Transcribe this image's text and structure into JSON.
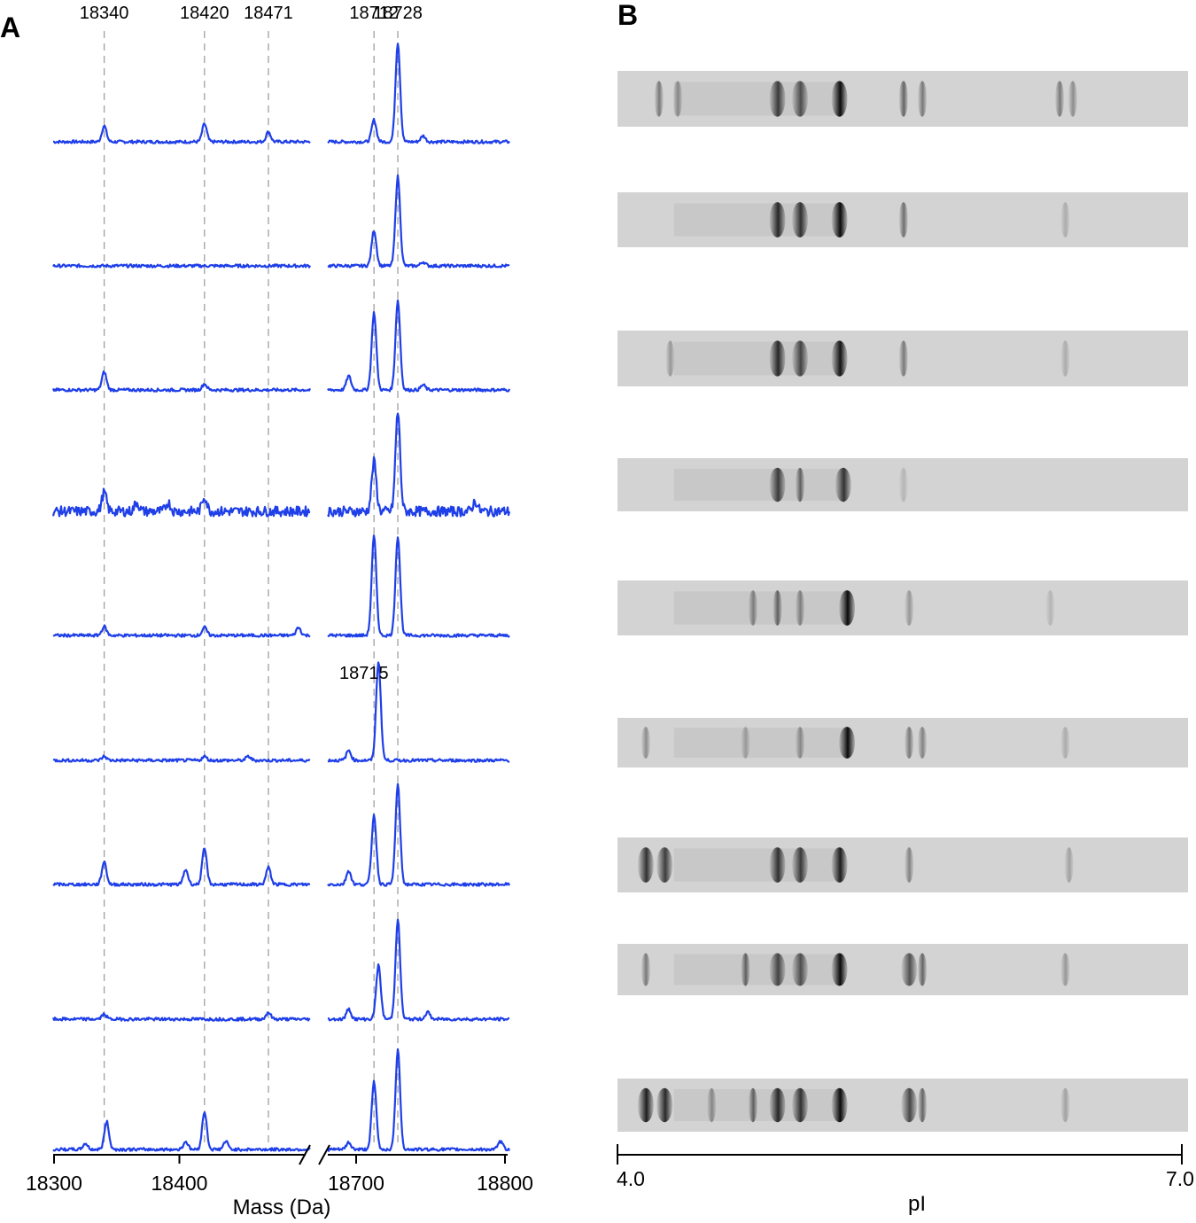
{
  "panels": {
    "a": "A",
    "b": "B"
  },
  "panel_a": {
    "reference_masses": [
      {
        "label": "18340",
        "value": 18340
      },
      {
        "label": "18420",
        "value": 18420
      },
      {
        "label": "18471",
        "value": 18471
      },
      {
        "label": "18712",
        "value": 18712
      },
      {
        "label": "18728",
        "value": 18728
      }
    ],
    "extra_annotation": {
      "label": "18715",
      "value": 18715,
      "spectrum": 6
    },
    "x_axis": {
      "title": "Mass (Da)",
      "ticks": [
        "18300",
        "18400",
        "18700",
        "18800"
      ],
      "break": true,
      "left_range": [
        18300,
        18505
      ],
      "right_range": [
        18650,
        18805
      ]
    },
    "colors": {
      "trace": "#1f3fe8",
      "guide": "#a0a0a0",
      "trace_tail": "#222222"
    },
    "spectra_count": 9
  },
  "panel_b": {
    "x_axis": {
      "title": "pI",
      "ticks": [
        "4.0",
        "7.0"
      ],
      "range": [
        4.0,
        7.0
      ]
    },
    "strip_count": 9
  },
  "chart_data": [
    {
      "type": "line",
      "title": "",
      "xlabel": "Mass (Da)",
      "ylabel": "",
      "xlim": [
        18300,
        18805
      ],
      "x_break": [
        18505,
        18650
      ],
      "grid": false,
      "legend": "none",
      "series": [
        {
          "peaks": [
            [
              18340,
              0.16
            ],
            [
              18420,
              0.18
            ],
            [
              18471,
              0.1
            ],
            [
              18712,
              0.22
            ],
            [
              18728,
              1.0
            ],
            [
              18745,
              0.06
            ]
          ]
        },
        {
          "peaks": [
            [
              18712,
              0.36
            ],
            [
              18728,
              0.9
            ],
            [
              18745,
              0.04
            ]
          ]
        },
        {
          "peaks": [
            [
              18340,
              0.18
            ],
            [
              18420,
              0.06
            ],
            [
              18695,
              0.14
            ],
            [
              18712,
              0.78
            ],
            [
              18728,
              0.9
            ],
            [
              18745,
              0.05
            ]
          ]
        },
        {
          "peaks": [
            [
              18340,
              0.19
            ],
            [
              18366,
              0.09
            ],
            [
              18391,
              0.09
            ],
            [
              18420,
              0.15
            ],
            [
              18712,
              0.5
            ],
            [
              18728,
              1.0
            ],
            [
              18780,
              0.1
            ]
          ]
        },
        {
          "peaks": [
            [
              18340,
              0.09
            ],
            [
              18420,
              0.08
            ],
            [
              18495,
              0.08
            ],
            [
              18712,
              1.0
            ],
            [
              18728,
              1.0
            ]
          ]
        },
        {
          "peaks": [
            [
              18340,
              0.04
            ],
            [
              18420,
              0.04
            ],
            [
              18455,
              0.04
            ],
            [
              18695,
              0.1
            ],
            [
              18715,
              1.0
            ]
          ]
        },
        {
          "peaks": [
            [
              18340,
              0.23
            ],
            [
              18405,
              0.15
            ],
            [
              18420,
              0.36
            ],
            [
              18471,
              0.17
            ],
            [
              18695,
              0.14
            ],
            [
              18712,
              0.7
            ],
            [
              18728,
              1.0
            ]
          ]
        },
        {
          "peaks": [
            [
              18340,
              0.05
            ],
            [
              18471,
              0.07
            ],
            [
              18695,
              0.1
            ],
            [
              18715,
              0.54
            ],
            [
              18728,
              1.0
            ],
            [
              18748,
              0.07
            ]
          ]
        },
        {
          "peaks": [
            [
              18325,
              0.06
            ],
            [
              18342,
              0.28
            ],
            [
              18405,
              0.08
            ],
            [
              18420,
              0.38
            ],
            [
              18437,
              0.08
            ],
            [
              18695,
              0.07
            ],
            [
              18712,
              0.68
            ],
            [
              18728,
              1.0
            ],
            [
              18797,
              0.08
            ]
          ]
        }
      ]
    },
    {
      "type": "heatmap",
      "title": "",
      "xlabel": "pI",
      "xlim": [
        4.0,
        7.0
      ],
      "bands_description": "IEF gel strips",
      "strips": [
        {
          "bands": [
            [
              4.22,
              0.45
            ],
            [
              4.32,
              0.35
            ],
            [
              4.85,
              0.75
            ],
            [
              4.97,
              0.65
            ],
            [
              5.18,
              1.0
            ],
            [
              5.52,
              0.55
            ],
            [
              5.62,
              0.45
            ],
            [
              6.35,
              0.45
            ],
            [
              6.42,
              0.35
            ]
          ]
        },
        {
          "bands": [
            [
              4.85,
              0.85
            ],
            [
              4.97,
              0.8
            ],
            [
              5.18,
              1.0
            ],
            [
              5.52,
              0.5
            ],
            [
              6.38,
              0.2
            ]
          ]
        },
        {
          "bands": [
            [
              4.28,
              0.3
            ],
            [
              4.85,
              0.85
            ],
            [
              4.97,
              0.7
            ],
            [
              5.18,
              0.95
            ],
            [
              5.52,
              0.45
            ],
            [
              6.38,
              0.2
            ]
          ]
        },
        {
          "bands": [
            [
              4.85,
              0.75
            ],
            [
              4.97,
              0.55
            ],
            [
              5.2,
              0.8
            ],
            [
              5.52,
              0.15
            ]
          ]
        },
        {
          "bands": [
            [
              4.72,
              0.4
            ],
            [
              4.85,
              0.55
            ],
            [
              4.97,
              0.4
            ],
            [
              5.22,
              1.0
            ],
            [
              5.55,
              0.3
            ],
            [
              6.3,
              0.15
            ]
          ]
        },
        {
          "bands": [
            [
              4.15,
              0.35
            ],
            [
              4.68,
              0.25
            ],
            [
              4.97,
              0.35
            ],
            [
              5.22,
              1.0
            ],
            [
              5.55,
              0.45
            ],
            [
              5.62,
              0.4
            ],
            [
              6.38,
              0.2
            ]
          ]
        },
        {
          "bands": [
            [
              4.15,
              0.8
            ],
            [
              4.25,
              0.75
            ],
            [
              4.85,
              0.8
            ],
            [
              4.97,
              0.75
            ],
            [
              5.18,
              0.9
            ],
            [
              5.55,
              0.4
            ],
            [
              6.4,
              0.25
            ]
          ]
        },
        {
          "bands": [
            [
              4.15,
              0.45
            ],
            [
              4.68,
              0.55
            ],
            [
              4.85,
              0.7
            ],
            [
              4.97,
              0.65
            ],
            [
              5.18,
              1.0
            ],
            [
              5.55,
              0.65
            ],
            [
              5.62,
              0.55
            ],
            [
              6.38,
              0.3
            ]
          ]
        },
        {
          "bands": [
            [
              4.15,
              0.9
            ],
            [
              4.25,
              0.85
            ],
            [
              4.5,
              0.35
            ],
            [
              4.72,
              0.55
            ],
            [
              4.85,
              0.85
            ],
            [
              4.97,
              0.8
            ],
            [
              5.18,
              1.0
            ],
            [
              5.55,
              0.7
            ],
            [
              5.62,
              0.55
            ],
            [
              6.38,
              0.25
            ]
          ]
        }
      ]
    }
  ]
}
